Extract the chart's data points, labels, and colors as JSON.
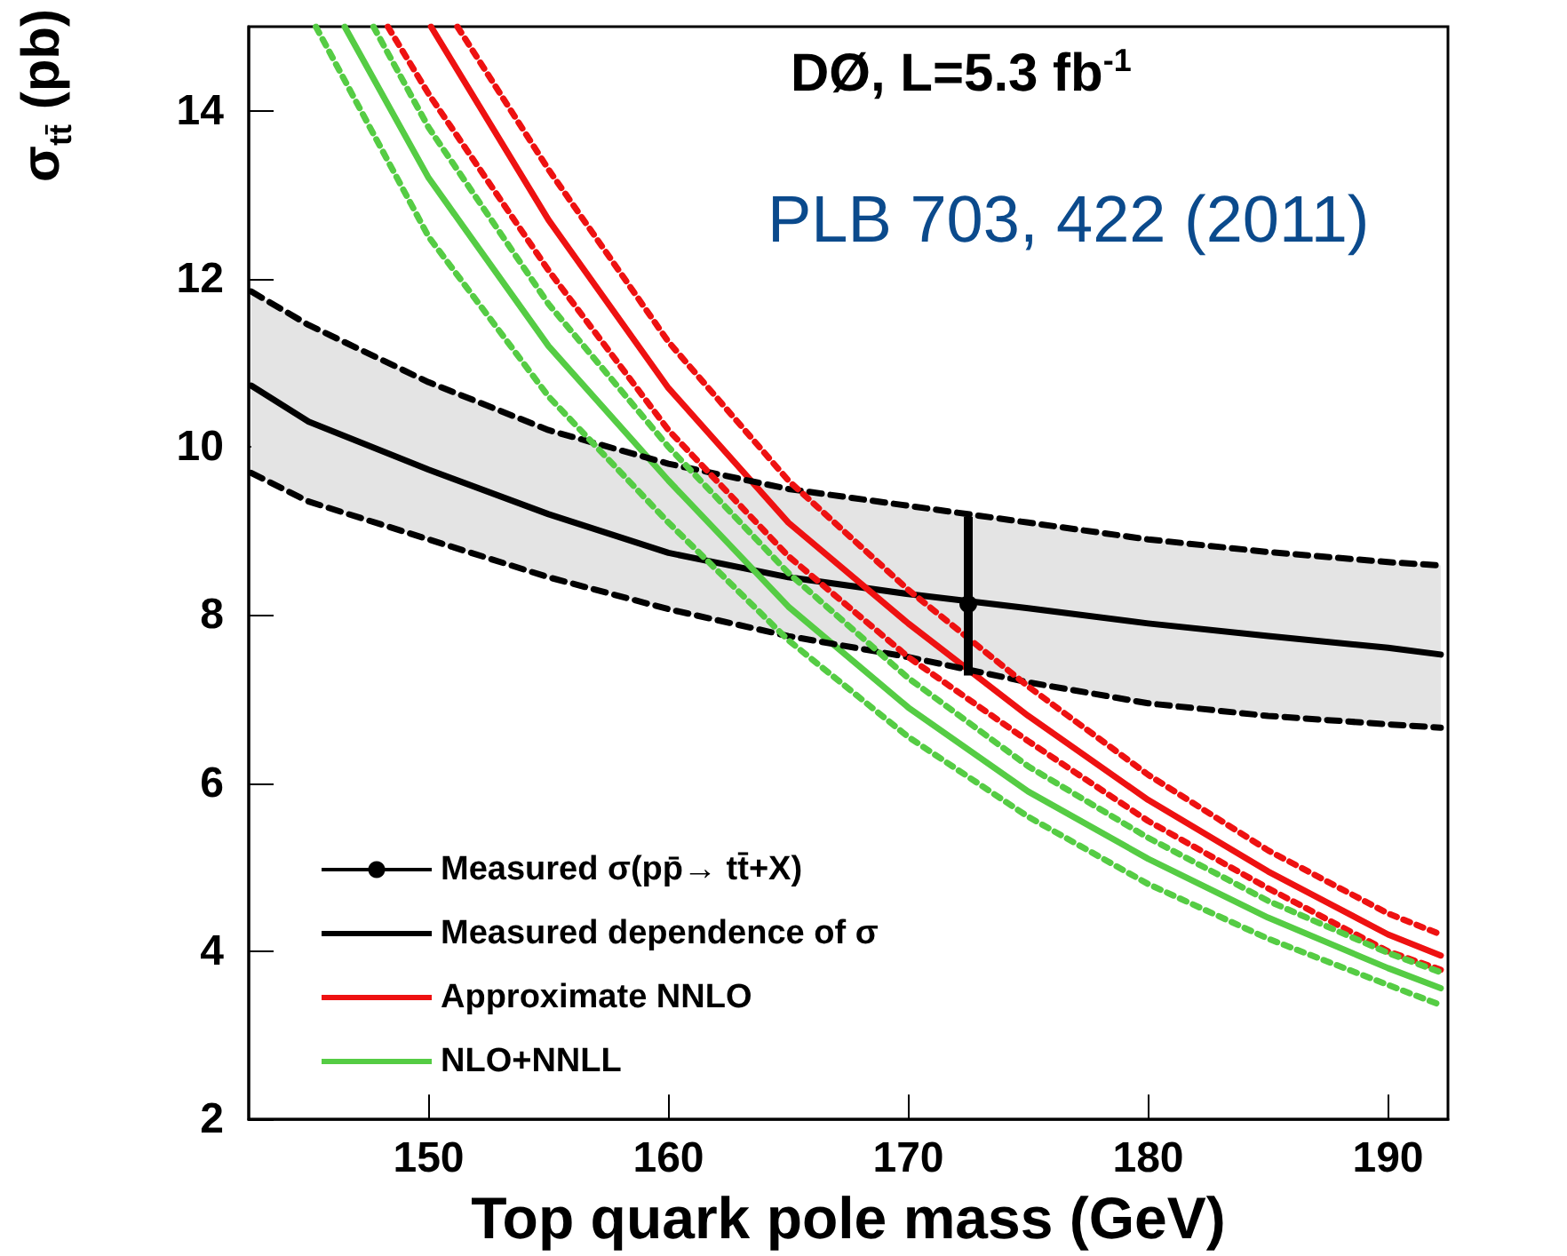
{
  "chart_data": {
    "type": "line",
    "xlabel": "Top quark pole mass (GeV)",
    "ylabel": "σ$_{tt̄}$ (pb)",
    "annotations": [
      "DØ, L=5.3 fb$^{-1}$",
      "PLB 703, 422 (2011)"
    ],
    "xlim": [
      142.5,
      192.5
    ],
    "xticks": [
      150,
      160,
      170,
      180,
      190
    ],
    "ylim": [
      2,
      15
    ],
    "yticks": [
      2,
      4,
      6,
      8,
      10,
      12,
      14
    ],
    "grid": false,
    "legend": "bottom left",
    "series": [
      {
        "name": "Measured σ(pp̄→ tt̄+X)",
        "type": "scatter",
        "marker": "circle",
        "color": "#000000",
        "x": [
          172.5
        ],
        "values": [
          8.13
        ],
        "errors": [
          [
            7.28,
            9.17
          ]
        ]
      },
      {
        "name": "Measured dependence of σ",
        "color": "#000000",
        "line_style": "solid",
        "x": [
          142.6,
          145,
          150,
          155,
          160,
          165,
          170,
          175,
          180,
          185,
          190,
          192.2
        ],
        "values": [
          10.73,
          10.3,
          9.73,
          9.2,
          8.74,
          8.45,
          8.25,
          8.08,
          7.9,
          7.75,
          7.61,
          7.53
        ],
        "lower": [
          9.69,
          9.35,
          8.9,
          8.45,
          8.07,
          7.75,
          7.5,
          7.2,
          6.95,
          6.8,
          6.7,
          6.66
        ],
        "upper": [
          11.85,
          11.45,
          10.77,
          10.2,
          9.8,
          9.5,
          9.3,
          9.1,
          8.9,
          8.75,
          8.63,
          8.59
        ]
      },
      {
        "name": "Approximate NNLO",
        "color": "#ee1111",
        "line_style": "solid",
        "x": [
          150.1,
          155,
          160,
          165,
          170,
          175,
          180,
          185,
          190,
          192.2
        ],
        "values": [
          15,
          12.7,
          10.7,
          9.1,
          7.9,
          6.8,
          5.8,
          4.95,
          4.2,
          3.95
        ]
      },
      {
        "name": "NLO+NNLL",
        "color": "#55cc44",
        "line_style": "solid",
        "x": [
          146.5,
          150,
          155,
          160,
          165,
          170,
          175,
          180,
          185,
          190,
          192.2
        ],
        "values": [
          15,
          13.2,
          11.2,
          9.6,
          8.1,
          6.9,
          5.9,
          5.1,
          4.4,
          3.8,
          3.56
        ]
      },
      {
        "color": "#000000",
        "line_style": "dashed",
        "x": [
          142.6,
          145,
          150,
          155,
          160,
          165,
          170,
          175,
          180,
          185,
          190,
          192.2
        ],
        "values": [
          11.85,
          11.45,
          10.77,
          10.2,
          9.8,
          9.5,
          9.3,
          9.1,
          8.9,
          8.75,
          8.63,
          8.59
        ]
      },
      {
        "color": "#000000",
        "line_style": "dashed",
        "x": [
          142.6,
          145,
          150,
          155,
          160,
          165,
          170,
          175,
          180,
          185,
          190,
          192.2
        ],
        "values": [
          9.69,
          9.35,
          8.9,
          8.45,
          8.07,
          7.75,
          7.5,
          7.2,
          6.95,
          6.8,
          6.7,
          6.66
        ]
      },
      {
        "color": "#ee1111",
        "line_style": "dotted",
        "x": [
          151.2,
          155,
          160,
          165,
          170,
          175,
          180,
          185,
          190,
          192.2
        ],
        "values": [
          15,
          13.3,
          11.25,
          9.6,
          8.3,
          7.15,
          6.1,
          5.2,
          4.45,
          4.2
        ]
      },
      {
        "color": "#ee1111",
        "line_style": "dotted",
        "x": [
          148.3,
          150,
          155,
          160,
          165,
          170,
          175,
          180,
          185,
          190,
          192.2
        ],
        "values": [
          15,
          14.2,
          12.1,
          10.2,
          8.7,
          7.5,
          6.5,
          5.55,
          4.75,
          4.0,
          3.78
        ]
      },
      {
        "color": "#55cc44",
        "line_style": "dotted",
        "x": [
          147.7,
          150,
          155,
          160,
          165,
          170,
          175,
          180,
          185,
          190,
          192.2
        ],
        "values": [
          15,
          13.8,
          11.7,
          10.0,
          8.5,
          7.25,
          6.2,
          5.35,
          4.6,
          3.98,
          3.75
        ]
      },
      {
        "color": "#55cc44",
        "line_style": "dotted",
        "x": [
          145.3,
          150,
          155,
          160,
          165,
          170,
          175,
          180,
          185,
          190,
          192.2
        ],
        "values": [
          15,
          12.5,
          10.6,
          9.1,
          7.7,
          6.55,
          5.6,
          4.8,
          4.15,
          3.6,
          3.36
        ]
      }
    ]
  }
}
